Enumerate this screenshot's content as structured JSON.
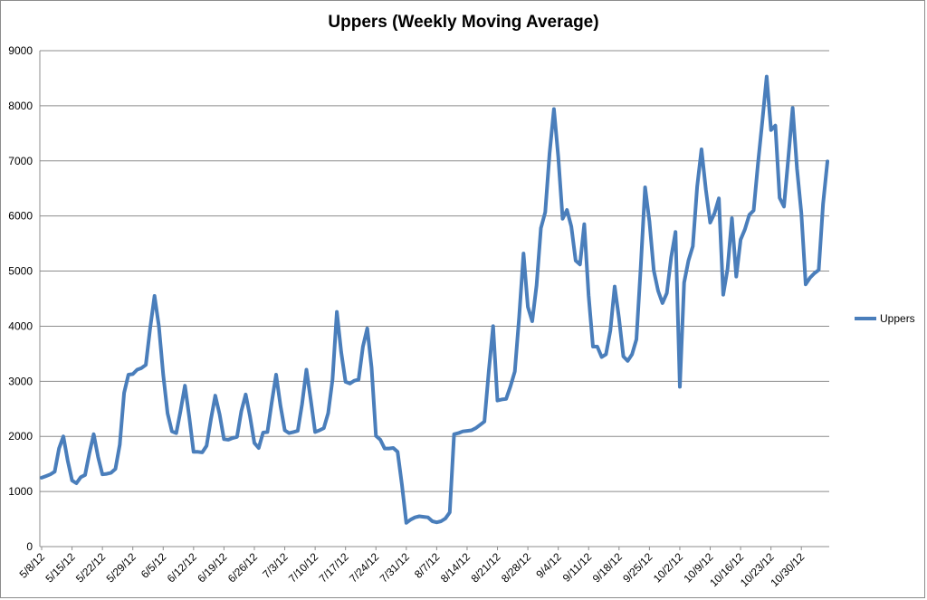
{
  "chart_data": {
    "type": "line",
    "title": "Uppers (Weekly Moving Average)",
    "xlabel": "",
    "ylabel": "",
    "ylim": [
      0,
      9000
    ],
    "y_ticks": [
      "0",
      "1000",
      "2000",
      "3000",
      "4000",
      "5000",
      "6000",
      "7000",
      "8000",
      "9000"
    ],
    "x_tick_labels": [
      "5/8/12",
      "5/15/12",
      "5/22/12",
      "5/29/12",
      "6/5/12",
      "6/12/12",
      "6/19/12",
      "6/26/12",
      "7/3/12",
      "7/10/12",
      "7/17/12",
      "7/24/12",
      "7/31/12",
      "8/7/12",
      "8/14/12",
      "8/21/12",
      "8/28/12",
      "9/4/12",
      "9/11/12",
      "9/18/12",
      "9/25/12",
      "10/2/12",
      "10/9/12",
      "10/16/12",
      "10/23/12",
      "10/30/12"
    ],
    "grid": true,
    "legend_position": "right",
    "series_color": "#4a7ebb",
    "series": [
      {
        "name": "Uppers",
        "x_start": "5/8/12",
        "x_step_days": 1,
        "values": [
          1250,
          1280,
          1310,
          1360,
          1780,
          2000,
          1560,
          1200,
          1150,
          1260,
          1300,
          1700,
          2040,
          1630,
          1310,
          1320,
          1340,
          1410,
          1850,
          2790,
          3120,
          3130,
          3210,
          3240,
          3300,
          3970,
          4550,
          4000,
          3120,
          2420,
          2090,
          2060,
          2470,
          2920,
          2360,
          1720,
          1720,
          1710,
          1830,
          2310,
          2740,
          2400,
          1950,
          1940,
          1970,
          1990,
          2460,
          2760,
          2360,
          1880,
          1790,
          2070,
          2080,
          2620,
          3120,
          2560,
          2110,
          2060,
          2080,
          2100,
          2590,
          3210,
          2660,
          2080,
          2110,
          2150,
          2420,
          3030,
          4260,
          3530,
          2990,
          2960,
          3010,
          3030,
          3630,
          3960,
          3240,
          2010,
          1940,
          1780,
          1780,
          1790,
          1720,
          1120,
          430,
          490,
          530,
          550,
          540,
          530,
          460,
          440,
          460,
          510,
          620,
          2040,
          2060,
          2090,
          2100,
          2110,
          2150,
          2210,
          2270,
          3180,
          4000,
          2650,
          2670,
          2680,
          2910,
          3180,
          4170,
          5320,
          4350,
          4090,
          4740,
          5780,
          6070,
          7140,
          7940,
          7070,
          5950,
          6110,
          5810,
          5190,
          5120,
          5850,
          4560,
          3630,
          3630,
          3440,
          3490,
          3920,
          4720,
          4140,
          3450,
          3370,
          3490,
          3760,
          5080,
          6520,
          5900,
          5010,
          4640,
          4420,
          4600,
          5250,
          5710,
          2900,
          4790,
          5190,
          5450,
          6530,
          7210,
          6480,
          5880,
          6050,
          6320,
          4570,
          5040,
          5960,
          4900,
          5570,
          5760,
          6020,
          6100,
          6950,
          7720,
          8530,
          7560,
          7640,
          6330,
          6170,
          7050,
          7960,
          6860,
          6050,
          4760,
          4880,
          4960,
          5020,
          6220,
          6990
        ]
      }
    ]
  }
}
